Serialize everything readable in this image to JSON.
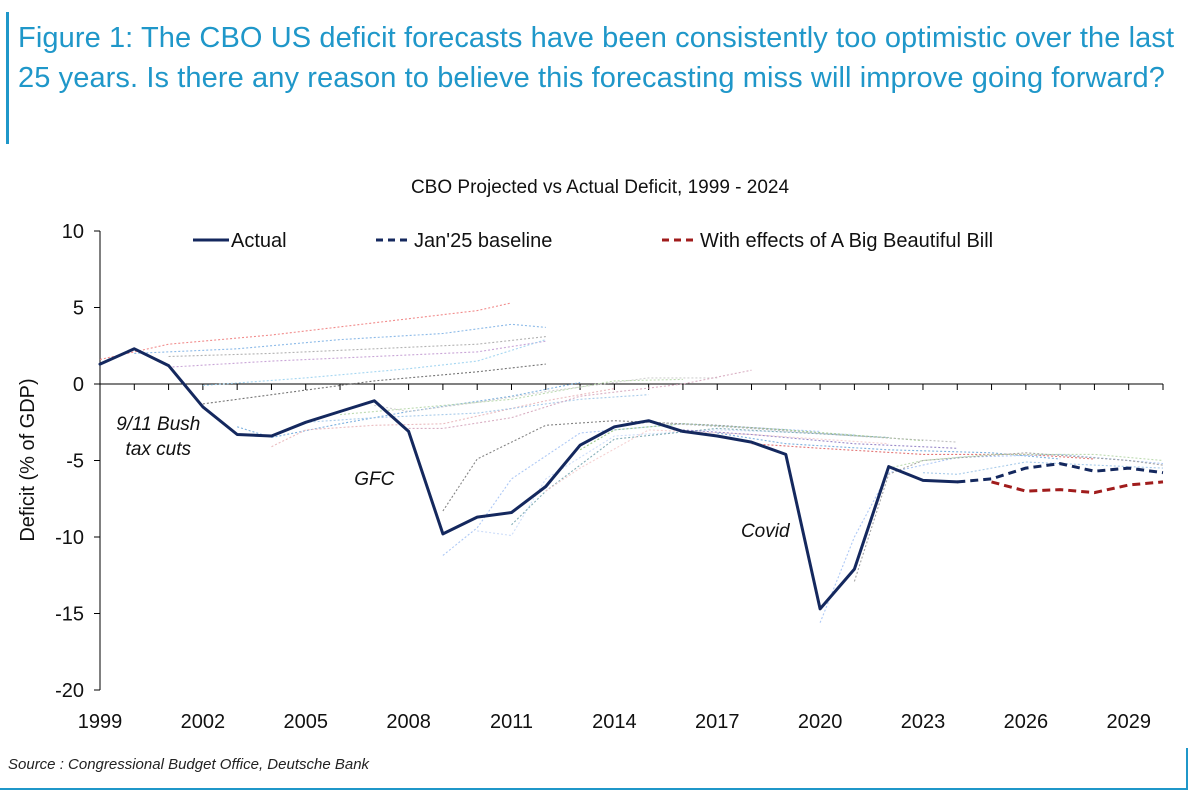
{
  "figure_title": "Figure 1: The CBO US deficit forecasts have been consistently too optimistic over the last 25 years. Is there any reason to believe this forecasting miss will improve going forward?",
  "source": "Source : Congressional Budget Office, Deutsche Bank",
  "colors": {
    "accent": "#1f97c9",
    "actual": "#14285e",
    "baseline": "#14285e",
    "bbb": "#a01c1c"
  },
  "chart_data": {
    "type": "line",
    "title": "CBO Projected vs Actual Deficit, 1999 - 2024",
    "ylabel": "Deficit (% of GDP)",
    "xlabel": "",
    "xlim": [
      1999,
      2030
    ],
    "ylim": [
      -20,
      10
    ],
    "x_ticks": [
      "1999",
      "2002",
      "2005",
      "2008",
      "2011",
      "2014",
      "2017",
      "2020",
      "2023",
      "2026",
      "2029"
    ],
    "y_ticks": [
      "10",
      "5",
      "0",
      "-5",
      "-10",
      "-15",
      "-20"
    ],
    "grid": false,
    "legend_position": "top",
    "series": [
      {
        "name": "Actual",
        "style": "solid",
        "color": "#14285e",
        "points": [
          [
            1999,
            1.3
          ],
          [
            2000,
            2.3
          ],
          [
            2001,
            1.2
          ],
          [
            2002,
            -1.5
          ],
          [
            2003,
            -3.3
          ],
          [
            2004,
            -3.4
          ],
          [
            2005,
            -2.5
          ],
          [
            2006,
            -1.8
          ],
          [
            2007,
            -1.1
          ],
          [
            2008,
            -3.1
          ],
          [
            2009,
            -9.8
          ],
          [
            2010,
            -8.7
          ],
          [
            2011,
            -8.4
          ],
          [
            2012,
            -6.7
          ],
          [
            2013,
            -4.0
          ],
          [
            2014,
            -2.8
          ],
          [
            2015,
            -2.4
          ],
          [
            2016,
            -3.1
          ],
          [
            2017,
            -3.4
          ],
          [
            2018,
            -3.8
          ],
          [
            2019,
            -4.6
          ],
          [
            2020,
            -14.7
          ],
          [
            2021,
            -12.1
          ],
          [
            2022,
            -5.4
          ],
          [
            2023,
            -6.3
          ],
          [
            2024,
            -6.4
          ]
        ]
      },
      {
        "name": "Jan'25 baseline",
        "style": "dashed",
        "color": "#14285e",
        "points": [
          [
            2024,
            -6.4
          ],
          [
            2025,
            -6.2
          ],
          [
            2026,
            -5.5
          ],
          [
            2027,
            -5.2
          ],
          [
            2028,
            -5.7
          ],
          [
            2029,
            -5.5
          ],
          [
            2030,
            -5.8
          ]
        ]
      },
      {
        "name": "With effects of A Big Beautiful Bill",
        "style": "dashed",
        "color": "#a01c1c",
        "points": [
          [
            2025,
            -6.4
          ],
          [
            2026,
            -7.0
          ],
          [
            2027,
            -6.9
          ],
          [
            2028,
            -7.1
          ],
          [
            2029,
            -6.6
          ],
          [
            2030,
            -6.4
          ]
        ]
      }
    ],
    "projection_vintages": [
      {
        "color": "#f08080",
        "points": [
          [
            1999,
            1.6
          ],
          [
            2001,
            2.6
          ],
          [
            2004,
            3.2
          ],
          [
            2007,
            4.0
          ],
          [
            2010,
            4.8
          ],
          [
            2011,
            5.3
          ]
        ]
      },
      {
        "color": "#7fb2e6",
        "points": [
          [
            2000,
            2.0
          ],
          [
            2003,
            2.3
          ],
          [
            2006,
            2.9
          ],
          [
            2009,
            3.3
          ],
          [
            2011,
            3.9
          ],
          [
            2012,
            3.7
          ]
        ]
      },
      {
        "color": "#aaaaaa",
        "points": [
          [
            2001,
            1.8
          ],
          [
            2004,
            2.0
          ],
          [
            2007,
            2.3
          ],
          [
            2010,
            2.6
          ],
          [
            2012,
            3.1
          ]
        ]
      },
      {
        "color": "#c39bd3",
        "points": [
          [
            2001,
            1.1
          ],
          [
            2004,
            1.5
          ],
          [
            2007,
            1.8
          ],
          [
            2010,
            2.1
          ],
          [
            2012,
            2.8
          ]
        ]
      },
      {
        "color": "#9bd1f0",
        "points": [
          [
            2002,
            -0.1
          ],
          [
            2005,
            0.4
          ],
          [
            2008,
            1.0
          ],
          [
            2010,
            1.5
          ],
          [
            2012,
            2.9
          ]
        ]
      },
      {
        "color": "#666666",
        "points": [
          [
            2002,
            -1.3
          ],
          [
            2004,
            -0.7
          ],
          [
            2007,
            0.2
          ],
          [
            2010,
            0.8
          ],
          [
            2012,
            1.3
          ]
        ]
      },
      {
        "color": "#6fa8dc",
        "points": [
          [
            2003,
            -2.8
          ],
          [
            2004,
            -3.5
          ],
          [
            2006,
            -2.6
          ],
          [
            2008,
            -1.8
          ],
          [
            2011,
            -0.8
          ],
          [
            2013,
            0.1
          ]
        ]
      },
      {
        "color": "#e8b4b8",
        "points": [
          [
            2004,
            -4.1
          ],
          [
            2005,
            -3.0
          ],
          [
            2007,
            -2.7
          ],
          [
            2009,
            -2.6
          ],
          [
            2012,
            -1.1
          ],
          [
            2014,
            -0.3
          ]
        ]
      },
      {
        "color": "#9fc5e8",
        "points": [
          [
            2005,
            -2.5
          ],
          [
            2007,
            -2.2
          ],
          [
            2010,
            -1.9
          ],
          [
            2013,
            -1.0
          ],
          [
            2015,
            -0.7
          ]
        ]
      },
      {
        "color": "#b6d7a8",
        "points": [
          [
            2006,
            -2.0
          ],
          [
            2008,
            -1.6
          ],
          [
            2011,
            -1.0
          ],
          [
            2014,
            0.2
          ],
          [
            2016,
            0.3
          ]
        ]
      },
      {
        "color": "#cccccc",
        "points": [
          [
            2007,
            -1.4
          ],
          [
            2008,
            -1.8
          ],
          [
            2010,
            -1.2
          ],
          [
            2012,
            -0.5
          ],
          [
            2015,
            0.4
          ],
          [
            2017,
            0.4
          ]
        ]
      },
      {
        "color": "#d5a6bd",
        "points": [
          [
            2008,
            -2.9
          ],
          [
            2009,
            -2.9
          ],
          [
            2011,
            -2.2
          ],
          [
            2013,
            -0.8
          ],
          [
            2016,
            0.0
          ],
          [
            2018,
            0.9
          ]
        ]
      },
      {
        "color": "#777777",
        "points": [
          [
            2009,
            -8.3
          ],
          [
            2010,
            -4.9
          ],
          [
            2012,
            -2.7
          ],
          [
            2014,
            -2.4
          ],
          [
            2017,
            -2.7
          ],
          [
            2019,
            -3.0
          ]
        ]
      },
      {
        "color": "#a4c2f4",
        "points": [
          [
            2009,
            -11.2
          ],
          [
            2010,
            -9.4
          ],
          [
            2011,
            -6.2
          ],
          [
            2013,
            -3.2
          ],
          [
            2016,
            -2.6
          ],
          [
            2020,
            -3.1
          ]
        ]
      },
      {
        "color": "#c9daf8",
        "points": [
          [
            2010,
            -9.6
          ],
          [
            2011,
            -9.9
          ],
          [
            2012,
            -6.2
          ],
          [
            2014,
            -3.4
          ],
          [
            2017,
            -3.0
          ],
          [
            2021,
            -3.3
          ]
        ]
      },
      {
        "color": "#76a5af",
        "points": [
          [
            2011,
            -9.2
          ],
          [
            2012,
            -7.0
          ],
          [
            2014,
            -3.6
          ],
          [
            2017,
            -2.9
          ],
          [
            2022,
            -3.5
          ]
        ]
      },
      {
        "color": "#f4cccc",
        "points": [
          [
            2012,
            -7.0
          ],
          [
            2013,
            -5.5
          ],
          [
            2015,
            -3.0
          ],
          [
            2018,
            -3.3
          ],
          [
            2022,
            -3.9
          ]
        ]
      },
      {
        "color": "#93c47d",
        "points": [
          [
            2013,
            -4.3
          ],
          [
            2014,
            -3.0
          ],
          [
            2016,
            -2.6
          ],
          [
            2019,
            -3.0
          ],
          [
            2023,
            -3.7
          ]
        ]
      },
      {
        "color": "#b7b7b7",
        "points": [
          [
            2014,
            -2.8
          ],
          [
            2015,
            -2.5
          ],
          [
            2018,
            -2.9
          ],
          [
            2021,
            -3.4
          ],
          [
            2024,
            -3.8
          ]
        ]
      },
      {
        "color": "#8e7cc3",
        "points": [
          [
            2016,
            -3.0
          ],
          [
            2018,
            -3.3
          ],
          [
            2021,
            -3.9
          ],
          [
            2024,
            -4.2
          ]
        ]
      },
      {
        "color": "#6fa8dc",
        "points": [
          [
            2017,
            -3.2
          ],
          [
            2019,
            -3.9
          ],
          [
            2022,
            -4.3
          ],
          [
            2025,
            -4.5
          ],
          [
            2027,
            -4.9
          ]
        ]
      },
      {
        "color": "#e06666",
        "points": [
          [
            2018,
            -3.9
          ],
          [
            2020,
            -4.2
          ],
          [
            2023,
            -4.6
          ],
          [
            2026,
            -4.6
          ],
          [
            2028,
            -4.9
          ]
        ]
      },
      {
        "color": "#a4c2f4",
        "points": [
          [
            2020,
            -15.6
          ],
          [
            2021,
            -10.0
          ],
          [
            2022,
            -5.8
          ],
          [
            2024,
            -4.8
          ],
          [
            2027,
            -4.6
          ],
          [
            2030,
            -5.2
          ]
        ]
      },
      {
        "color": "#999999",
        "points": [
          [
            2021,
            -12.9
          ],
          [
            2022,
            -5.9
          ],
          [
            2023,
            -5.0
          ],
          [
            2026,
            -4.5
          ],
          [
            2029,
            -5.0
          ],
          [
            2030,
            -5.3
          ]
        ]
      },
      {
        "color": "#b6d7a8",
        "points": [
          [
            2022,
            -5.5
          ],
          [
            2023,
            -5.0
          ],
          [
            2025,
            -4.6
          ],
          [
            2028,
            -4.6
          ],
          [
            2030,
            -5.0
          ]
        ]
      },
      {
        "color": "#9fc5e8",
        "points": [
          [
            2023,
            -5.8
          ],
          [
            2024,
            -5.9
          ],
          [
            2026,
            -5.1
          ],
          [
            2028,
            -5.3
          ],
          [
            2030,
            -5.5
          ]
        ]
      }
    ],
    "annotations": [
      {
        "text_lines": [
          "9/11 Bush",
          "tax cuts"
        ],
        "x": 2000.7,
        "y": -3.0
      },
      {
        "text": "GFC",
        "x": 2007.0,
        "y": -6.6
      },
      {
        "text": "Covid",
        "x": 2018.4,
        "y": -10.0
      }
    ]
  }
}
